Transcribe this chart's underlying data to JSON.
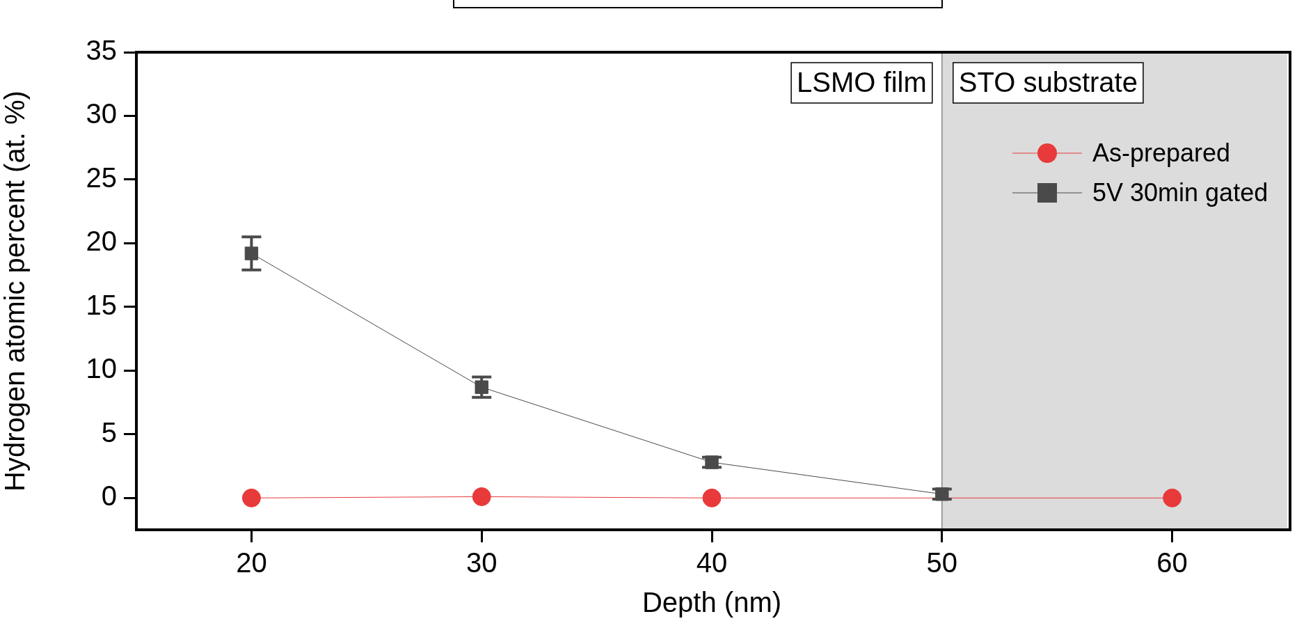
{
  "chart_data": {
    "type": "line",
    "xlabel": "Depth (nm)",
    "ylabel": "Hydrogen atomic percent (at. %)",
    "xlim": [
      15,
      65
    ],
    "xticks": [
      20,
      30,
      40,
      50,
      60
    ],
    "ylim": [
      -2.5,
      35
    ],
    "yticks": [
      0,
      5,
      10,
      15,
      20,
      25,
      30,
      35
    ],
    "series": [
      {
        "name": "As-prepared",
        "color": "#e83a3a",
        "marker": "circle",
        "x": [
          20,
          30,
          40,
          50,
          60
        ],
        "values": [
          0,
          0.1,
          0,
          null,
          0
        ]
      },
      {
        "name": "5V 30min gated",
        "color": "#4a4a4a",
        "marker": "square",
        "x": [
          20,
          30,
          40,
          50
        ],
        "values": [
          19.2,
          8.7,
          2.8,
          0.3
        ],
        "errors": [
          1.3,
          0.8,
          0.4,
          0.4
        ]
      }
    ],
    "bands": [
      {
        "axis": "x",
        "from": 50,
        "to": 65,
        "label": "STO substrate",
        "color": "#dcdcdc"
      }
    ],
    "ref_lines": [
      {
        "axis": "x",
        "value": 50,
        "color": "#888888"
      }
    ],
    "annotations": [
      "LSMO film"
    ],
    "legend": "top right",
    "grid": false,
    "line_style": "solid"
  }
}
